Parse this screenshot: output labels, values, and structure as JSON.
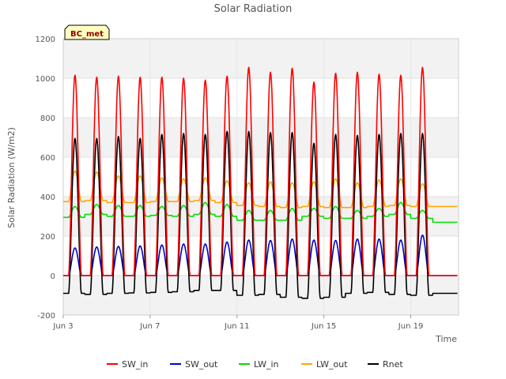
{
  "chart_data": {
    "type": "line",
    "title": "Solar Radiation",
    "xlabel": "Time",
    "ylabel": "Solar Radiation (W/m2)",
    "site_badge": "BC_met",
    "xlim": [
      3.0,
      21.2
    ],
    "ylim": [
      -200,
      1200
    ],
    "x_ticks": [
      {
        "value": 3,
        "label": "Jun 3"
      },
      {
        "value": 7,
        "label": "Jun 7"
      },
      {
        "value": 11,
        "label": "Jun 11"
      },
      {
        "value": 15,
        "label": "Jun 15"
      },
      {
        "value": 19,
        "label": "Jun 19"
      }
    ],
    "y_ticks": [
      -200,
      0,
      200,
      400,
      600,
      800,
      1000,
      1200
    ],
    "grid": true,
    "legend_position": "bottom",
    "days": [
      "Jun 3",
      "Jun 4",
      "Jun 5",
      "Jun 6",
      "Jun 7",
      "Jun 8",
      "Jun 9",
      "Jun 10",
      "Jun 11",
      "Jun 12",
      "Jun 13",
      "Jun 14",
      "Jun 15",
      "Jun 16",
      "Jun 17",
      "Jun 18",
      "Jun 19",
      "Jun 20"
    ],
    "series": [
      {
        "name": "SW_in",
        "color": "#ff0000",
        "daily_peak": [
          1015,
          1005,
          1010,
          1005,
          1005,
          1000,
          990,
          1010,
          1055,
          1030,
          1050,
          980,
          1025,
          1030,
          1020,
          1015,
          1055,
          0
        ]
      },
      {
        "name": "SW_out",
        "color": "#0000cc",
        "daily_peak": [
          140,
          145,
          148,
          150,
          155,
          160,
          160,
          170,
          180,
          178,
          185,
          180,
          178,
          185,
          185,
          180,
          205,
          0
        ]
      },
      {
        "name": "LW_in",
        "color": "#00dd00",
        "daily_min": [
          295,
          310,
          300,
          300,
          305,
          300,
          310,
          300,
          280,
          280,
          280,
          300,
          290,
          290,
          300,
          310,
          290,
          270
        ],
        "daily_peak": [
          350,
          360,
          355,
          355,
          350,
          355,
          370,
          360,
          330,
          330,
          340,
          340,
          350,
          330,
          340,
          370,
          330,
          0
        ]
      },
      {
        "name": "LW_out",
        "color": "#ffa500",
        "daily_min": [
          375,
          380,
          370,
          370,
          375,
          375,
          380,
          370,
          355,
          350,
          345,
          350,
          345,
          345,
          350,
          355,
          350,
          350
        ],
        "daily_peak": [
          530,
          525,
          505,
          505,
          495,
          490,
          495,
          480,
          470,
          475,
          470,
          475,
          490,
          470,
          485,
          490,
          465,
          0
        ]
      },
      {
        "name": "Rnet",
        "color": "#000000",
        "daily_min": [
          -90,
          -95,
          -90,
          -88,
          -85,
          -82,
          -75,
          -75,
          -100,
          -95,
          -110,
          -115,
          -110,
          -90,
          -85,
          -95,
          -100,
          -90
        ],
        "daily_peak": [
          695,
          695,
          705,
          695,
          715,
          720,
          715,
          730,
          730,
          725,
          725,
          670,
          715,
          710,
          715,
          720,
          720,
          0
        ]
      }
    ]
  }
}
